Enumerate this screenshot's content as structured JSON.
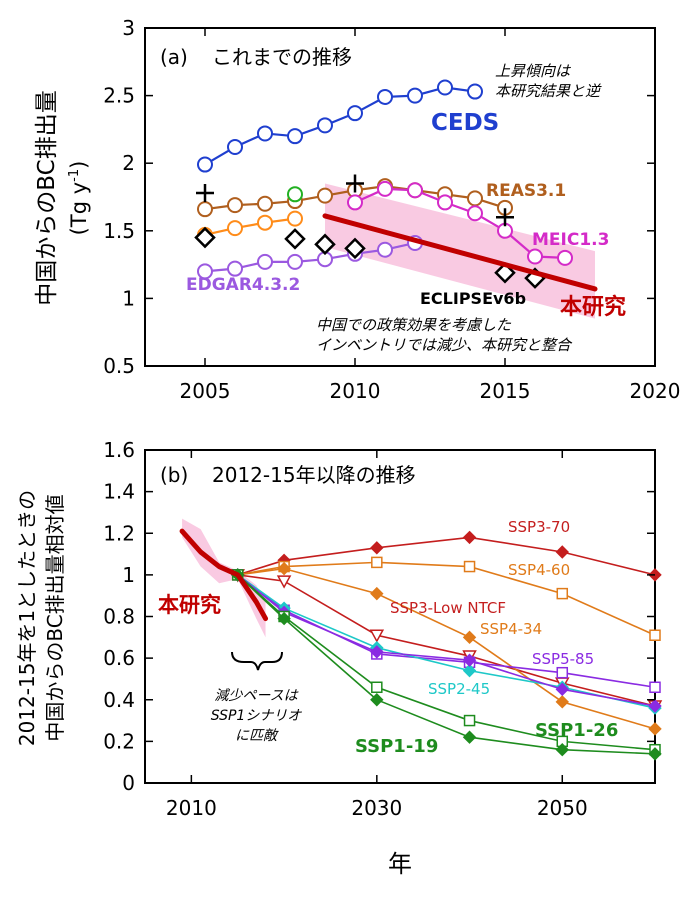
{
  "chart_data": [
    {
      "type": "line",
      "panel_label": "(a)",
      "title": "これまでの推移",
      "ylabel": "中国からのBC排出量",
      "yunit_prefix": "(Tg  y",
      "yunit_exp": "-1",
      "yunit_suffix": ")",
      "xlim": [
        2003,
        2020
      ],
      "ylim": [
        0.5,
        3.0
      ],
      "xticks": [
        2005,
        2010,
        2015,
        2020
      ],
      "yticks": [
        0.5,
        1,
        1.5,
        2,
        2.5,
        3
      ],
      "ytick_labels": [
        "0.5",
        "1",
        "1.5",
        "2",
        "2.5",
        "3"
      ],
      "series": [
        {
          "name": "CEDS",
          "color": "#1f3fcf",
          "marker": "circle",
          "x": [
            2005,
            2006,
            2007,
            2008,
            2009,
            2010,
            2011,
            2012,
            2013,
            2014
          ],
          "y": [
            1.99,
            2.12,
            2.22,
            2.2,
            2.28,
            2.37,
            2.49,
            2.5,
            2.56,
            2.53
          ]
        },
        {
          "name": "REAS3.1",
          "color": "#b05f1e",
          "marker": "circle",
          "x": [
            2005,
            2006,
            2007,
            2008,
            2009,
            2010,
            2011,
            2012,
            2013,
            2014,
            2015
          ],
          "y": [
            1.66,
            1.69,
            1.7,
            1.72,
            1.76,
            1.8,
            1.83,
            1.8,
            1.77,
            1.74,
            1.67
          ]
        },
        {
          "name": "MEIC1.3",
          "color": "#d42bc8",
          "marker": "circle",
          "x": [
            2010,
            2011,
            2012,
            2013,
            2014,
            2015,
            2016,
            2017
          ],
          "y": [
            1.71,
            1.81,
            1.8,
            1.71,
            1.63,
            1.5,
            1.31,
            1.3
          ]
        },
        {
          "name": "EDGAR4.3.2",
          "color": "#9b59e0",
          "marker": "circle",
          "x": [
            2005,
            2006,
            2007,
            2008,
            2009,
            2010,
            2011,
            2012
          ],
          "y": [
            1.2,
            1.22,
            1.27,
            1.27,
            1.29,
            1.33,
            1.36,
            1.41
          ]
        },
        {
          "name": "",
          "color": "#ff8c1a",
          "marker": "circle",
          "x": [
            2005,
            2006,
            2007,
            2008
          ],
          "y": [
            1.47,
            1.52,
            1.56,
            1.59
          ]
        },
        {
          "name": "",
          "color": "#22b022",
          "marker": "circle_open_only",
          "x": [
            2008
          ],
          "y": [
            1.77
          ]
        },
        {
          "name": "",
          "color": "#000000",
          "marker": "plus",
          "x": [
            2005,
            2010,
            2015
          ],
          "y": [
            1.78,
            1.85,
            1.6
          ]
        },
        {
          "name": "ECLIPSEv6b",
          "color": "#000000",
          "marker": "diamond",
          "x": [
            2005,
            2008,
            2009,
            2010,
            2015,
            2016
          ],
          "y": [
            1.45,
            1.44,
            1.4,
            1.37,
            1.19,
            1.15
          ]
        },
        {
          "name": "本研究",
          "color": "#c00000",
          "marker": "thick_line",
          "x": [
            2009,
            2018
          ],
          "y": [
            1.61,
            1.07
          ],
          "band_upper": [
            1.85,
            1.35
          ],
          "band_lower": [
            1.38,
            0.85
          ]
        }
      ],
      "annotations": [
        {
          "text": "上昇傾向は"
        },
        {
          "text": "本研究結果と逆"
        },
        {
          "text": "中国での政策効果を考慮した"
        },
        {
          "text": "インベントリでは減少、本研究と整合"
        }
      ]
    },
    {
      "type": "line",
      "panel_label": "(b)",
      "title": "2012-15年以降の推移",
      "ylabel_line1": "2012-15年を1としたときの",
      "ylabel_line2": "中国からのBC排出量相対値",
      "xlabel": "年",
      "xlim": [
        2005,
        2060
      ],
      "ylim": [
        0,
        1.6
      ],
      "xticks": [
        2010,
        2030,
        2050
      ],
      "yticks": [
        0,
        0.2,
        0.4,
        0.6,
        0.8,
        1,
        1.2,
        1.4,
        1.6
      ],
      "ytick_labels": [
        "0",
        "0.2",
        "0.4",
        "0.6",
        "0.8",
        "1",
        "1.2",
        "1.4",
        "1.6"
      ],
      "series": [
        {
          "name": "SSP3-70",
          "color": "#c41e1e",
          "marker": "diamond_filled",
          "x": [
            2015,
            2020,
            2030,
            2040,
            2050,
            2060
          ],
          "y": [
            1.0,
            1.07,
            1.13,
            1.18,
            1.11,
            1.0
          ]
        },
        {
          "name": "SSP4-60",
          "color": "#e07b1a",
          "marker": "square_open",
          "x": [
            2015,
            2020,
            2030,
            2040,
            2050,
            2060
          ],
          "y": [
            1.0,
            1.04,
            1.06,
            1.04,
            0.91,
            0.71
          ]
        },
        {
          "name": "SSP3-Low NTCF",
          "color": "#c41e1e",
          "marker": "triangle_open",
          "x": [
            2015,
            2020,
            2030,
            2040,
            2050,
            2060
          ],
          "y": [
            1.0,
            0.97,
            0.71,
            0.61,
            0.48,
            0.37
          ]
        },
        {
          "name": "SSP4-34",
          "color": "#e07b1a",
          "marker": "diamond_filled",
          "x": [
            2015,
            2020,
            2030,
            2040,
            2050,
            2060
          ],
          "y": [
            1.0,
            1.03,
            0.91,
            0.7,
            0.39,
            0.26
          ]
        },
        {
          "name": "SSP5-85",
          "color": "#8a2be2",
          "marker": "square_open",
          "x": [
            2015,
            2020,
            2030,
            2040,
            2050,
            2060
          ],
          "y": [
            1.0,
            0.83,
            0.62,
            0.58,
            0.53,
            0.46
          ]
        },
        {
          "name": "SSP2-45",
          "color": "#1ec8c8",
          "marker": "diamond_filled",
          "x": [
            2015,
            2020,
            2030,
            2040,
            2050,
            2060
          ],
          "y": [
            1.0,
            0.84,
            0.65,
            0.54,
            0.46,
            0.36
          ]
        },
        {
          "name": "",
          "color": "#8a2be2",
          "marker": "diamond_filled",
          "x": [
            2015,
            2020,
            2030,
            2040,
            2050,
            2060
          ],
          "y": [
            1.0,
            0.82,
            0.63,
            0.59,
            0.45,
            0.37
          ]
        },
        {
          "name": "SSP1-26",
          "color": "#1e8c1e",
          "marker": "square_open",
          "x": [
            2015,
            2020,
            2030,
            2040,
            2050,
            2060
          ],
          "y": [
            1.0,
            0.8,
            0.46,
            0.3,
            0.2,
            0.16
          ]
        },
        {
          "name": "SSP1-19",
          "color": "#1e8c1e",
          "marker": "diamond_filled",
          "x": [
            2015,
            2020,
            2030,
            2040,
            2050,
            2060
          ],
          "y": [
            1.0,
            0.79,
            0.4,
            0.22,
            0.16,
            0.14
          ]
        },
        {
          "name": "本研究",
          "color": "#c00000",
          "marker": "thick_line",
          "x": [
            2009,
            2011,
            2013,
            2015,
            2017,
            2018
          ],
          "y": [
            1.21,
            1.11,
            1.04,
            1.0,
            0.87,
            0.79
          ],
          "band_upper": [
            1.27,
            1.22,
            1.06,
            1.02,
            0.95,
            0.87
          ],
          "band_lower": [
            1.18,
            1.04,
            0.96,
            0.98,
            0.79,
            0.7
          ]
        }
      ],
      "annotations": [
        {
          "text": "減少ペースは"
        },
        {
          "text": "SSP1シナリオ"
        },
        {
          "text": "に匹敵"
        }
      ]
    }
  ]
}
